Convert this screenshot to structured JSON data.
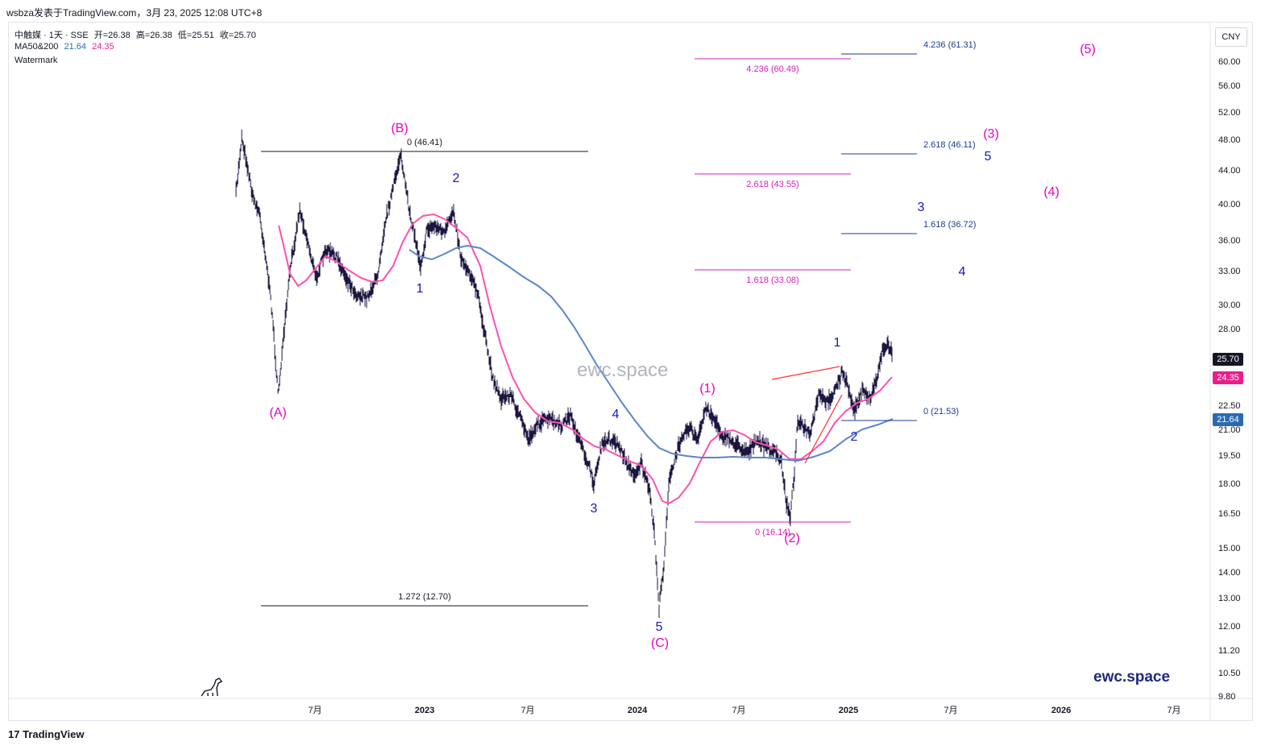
{
  "header": {
    "publish_line": "wsbza发表于TradingView.com，3月 23, 2025 12:08 UTC+8"
  },
  "legend": {
    "symbol_line": "中触媒 · 1天 · SSE",
    "ohlc": {
      "open_label": "开=26.38",
      "high_label": "高=26.38",
      "low_label": "低=25.51",
      "close_label": "收=25.70"
    },
    "ma_label": "MA50&200",
    "ma50": "21.64",
    "ma200": "24.35",
    "watermark_label": "Watermark"
  },
  "currency": "CNY",
  "price_axis": [
    "60.00",
    "56.00",
    "52.00",
    "48.00",
    "44.00",
    "40.00",
    "36.00",
    "33.00",
    "30.00",
    "28.00",
    "22.50",
    "21.00",
    "19.50",
    "18.00",
    "16.50",
    "15.00",
    "14.00",
    "13.00",
    "12.00",
    "11.20",
    "10.50",
    "9.80"
  ],
  "price_tags": {
    "last": {
      "text": "25.70",
      "color": "#131722"
    },
    "ma_pink": {
      "text": "24.35",
      "color": "#e91e8c"
    },
    "ma_blue": {
      "text": "21.64",
      "color": "#2a6ab1"
    }
  },
  "time_axis": [
    "7月",
    "2023",
    "7月",
    "2024",
    "7月",
    "2025",
    "7月",
    "2026",
    "7月"
  ],
  "fib_labels": {
    "black_0": "0 (46.41)",
    "black_1272": "1.272 (12.70)",
    "pink_4236": "4.236 (60.49)",
    "pink_2618": "2.618 (43.55)",
    "pink_1618": "1.618 (33.08)",
    "pink_0": "0 (16.14)",
    "blue_4236": "4.236 (61.31)",
    "blue_2618": "2.618 (46.11)",
    "blue_1618": "1.618 (36.72)",
    "blue_0": "0 (21.53)"
  },
  "wave_labels": {
    "A": "(A)",
    "B": "(B)",
    "C": "(C)",
    "p1": "(1)",
    "p2": "(2)",
    "p3": "(3)",
    "p4": "(4)",
    "p5": "(5)",
    "b1": "1",
    "b2": "2",
    "b3": "3",
    "b4": "4",
    "b5": "5",
    "n1": "1",
    "n2": "2",
    "n3": "3",
    "n4": "4",
    "n5": "5"
  },
  "watermark_text": "ewc.space",
  "brand_text": "ewc.space",
  "footer": {
    "logo_text": "TradingView"
  },
  "colors": {
    "wave_pink": "#e600c8",
    "wave_blue": "#1515c8",
    "fib_pink": "#d81bbd",
    "fib_blue": "#1f3a93",
    "ma_pink": "#ff4fb0",
    "ma_blue": "#5b86c5",
    "candles": "#1b1640"
  }
}
